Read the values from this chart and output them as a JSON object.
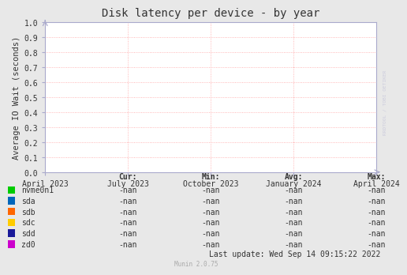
{
  "title": "Disk latency per device - by year",
  "ylabel": "Average IO Wait (seconds)",
  "ylim": [
    0.0,
    1.0
  ],
  "yticks": [
    0.0,
    0.1,
    0.2,
    0.3,
    0.4,
    0.5,
    0.6,
    0.7,
    0.8,
    0.9,
    1.0
  ],
  "x_tick_labels": [
    "April 2023",
    "July 2023",
    "October 2023",
    "January 2024",
    "April 2024"
  ],
  "background_color": "#e8e8e8",
  "plot_bg_color": "#ffffff",
  "grid_color": "#ff9999",
  "axis_color": "#aaaacc",
  "title_color": "#333333",
  "text_color": "#333333",
  "devices": [
    "nvme0n1",
    "sda",
    "sdb",
    "sdc",
    "sdd",
    "zd0"
  ],
  "device_colors": [
    "#00cc00",
    "#0066bb",
    "#ff6600",
    "#ffcc00",
    "#1a1a99",
    "#cc00cc"
  ],
  "legend_headers": [
    "Cur:",
    "Min:",
    "Avg:",
    "Max:"
  ],
  "nan_val": "-nan",
  "watermark_text": "RRDTOOL / TOBI OETIKER",
  "footer_text": "Munin 2.0.75",
  "last_update": "Last update: Wed Sep 14 09:15:22 2022",
  "font_family": "DejaVu Sans Mono",
  "tick_fontsize": 7,
  "title_fontsize": 10,
  "legend_fontsize": 7,
  "ylabel_fontsize": 7.5
}
